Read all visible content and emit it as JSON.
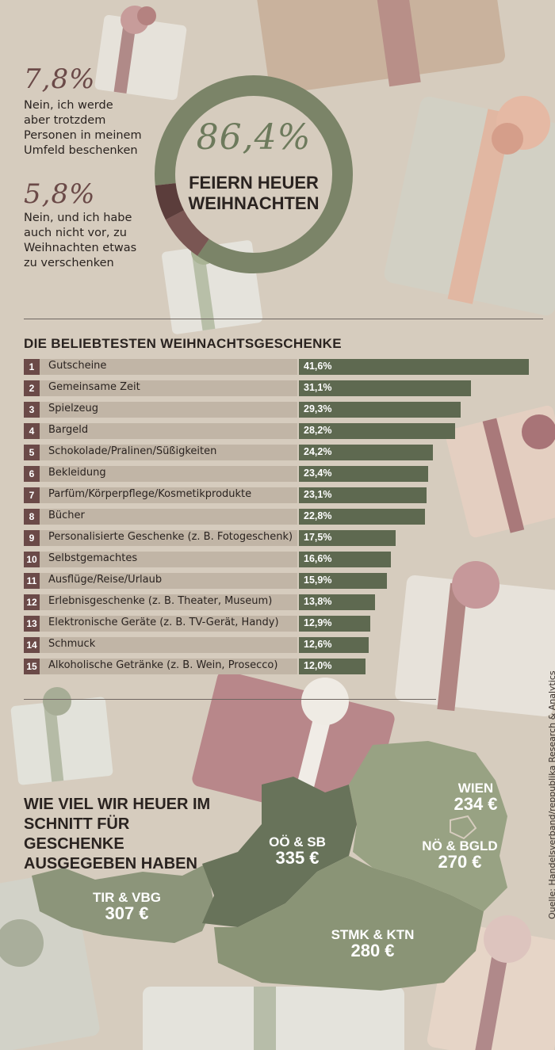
{
  "colors": {
    "background": "#d6ccbe",
    "green": "#7b8468",
    "green_dark": "#5e6950",
    "map_light": "#96a07f",
    "map_mid": "#7f8a69",
    "map_dark": "#687356",
    "mauve": "#7a5653",
    "mauve_dark": "#5b3d3b",
    "rank_badge": "#6b4a48",
    "row_fill": "#c1b5a6"
  },
  "donut": {
    "main_value": "86,4%",
    "main_label": "FEIERN HEUER WEIHNACHTEN",
    "item1_value": "7,8%",
    "item1_text": "Nein, ich werde aber trotzdem Personen in meinem Umfeld beschenken",
    "item2_value": "5,8%",
    "item2_text": "Nein, und ich habe auch nicht vor, zu Weihnachten etwas zu verschenken"
  },
  "gifts_section": {
    "title": "DIE BELIEBTESTEN WEIHNACHTSGESCHENKE"
  },
  "map_section": {
    "title": "WIE VIEL WIR HEUER IM SCHNITT FÜR GESCHENKE AUSGEGEBEN HABEN",
    "regions": [
      {
        "name": "WIEN",
        "value": "234 €"
      },
      {
        "name": "OÖ & SB",
        "value": "335 €"
      },
      {
        "name": "NÖ & BGLD",
        "value": "270 €"
      },
      {
        "name": "TIR & VBG",
        "value": "307 €"
      },
      {
        "name": "STMK & KTN",
        "value": "280 €"
      }
    ]
  },
  "source": "Quelle: Handelsverband/reppublika Research & Analytics",
  "chart_data": [
    {
      "type": "pie",
      "categories": [
        "FEIERN HEUER WEIHNACHTEN",
        "Nein, ich werde aber trotzdem Personen in meinem Umfeld beschenken",
        "Nein, und ich habe auch nicht vor, zu Weihnachten etwas zu verschenken"
      ],
      "values": [
        86.4,
        7.8,
        5.8
      ],
      "labels": [
        "86,4%",
        "7,8%",
        "5,8%"
      ]
    },
    {
      "type": "bar",
      "title": "DIE BELIEBTESTEN WEIHNACHTSGESCHENKE",
      "ranks": [
        "1",
        "2",
        "3",
        "4",
        "5",
        "6",
        "7",
        "8",
        "9",
        "10",
        "11",
        "12",
        "13",
        "14",
        "15"
      ],
      "categories": [
        "Gutscheine",
        "Gemeinsame Zeit",
        "Spielzeug",
        "Bargeld",
        "Schokolade/Pralinen/Süßigkeiten",
        "Bekleidung",
        "Parfüm/Körperpflege/Kosmetikprodukte",
        "Bücher",
        "Personalisierte Geschenke (z. B. Fotogeschenk)",
        "Selbstgemachtes",
        "Ausflüge/Reise/Urlaub",
        "Erlebnisgeschenke (z. B. Theater, Museum)",
        "Elektronische Geräte (z. B. TV-Gerät, Handy)",
        "Schmuck",
        "Alkoholische Getränke (z. B. Wein, Prosecco)"
      ],
      "values": [
        41.6,
        31.1,
        29.3,
        28.2,
        24.2,
        23.4,
        23.1,
        22.8,
        17.5,
        16.6,
        15.9,
        13.8,
        12.9,
        12.6,
        12.0
      ],
      "labels": [
        "41,6%",
        "31,1%",
        "29,3%",
        "28,2%",
        "24,2%",
        "23,4%",
        "23,1%",
        "22,8%",
        "17,5%",
        "16,6%",
        "15,9%",
        "13,8%",
        "12,9%",
        "12,6%",
        "12,0%"
      ]
    }
  ]
}
